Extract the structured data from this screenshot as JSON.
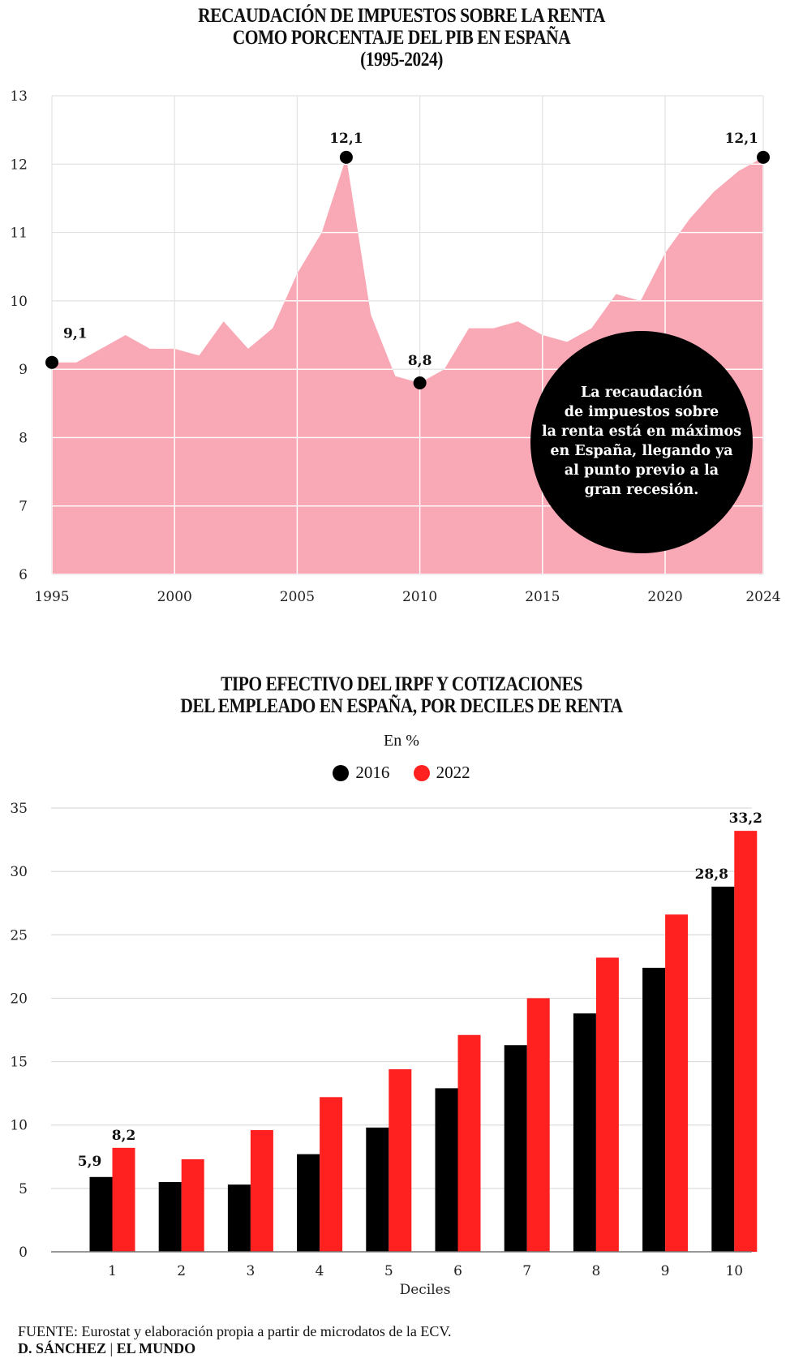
{
  "chart_data": [
    {
      "type": "area",
      "title": [
        "RECAUDACIÓN DE IMPUESTOS SOBRE LA RENTA",
        "COMO PORCENTAJE DEL PIB EN ESPAÑA",
        "(1995-2024)"
      ],
      "x": [
        1995,
        1996,
        1997,
        1998,
        1999,
        2000,
        2001,
        2002,
        2003,
        2004,
        2005,
        2006,
        2007,
        2008,
        2009,
        2010,
        2011,
        2012,
        2013,
        2014,
        2015,
        2016,
        2017,
        2018,
        2019,
        2020,
        2021,
        2022,
        2023,
        2024
      ],
      "values": [
        9.1,
        9.1,
        9.3,
        9.5,
        9.3,
        9.3,
        9.2,
        9.7,
        9.3,
        9.6,
        10.4,
        11.0,
        12.1,
        9.8,
        8.9,
        8.8,
        9.0,
        9.6,
        9.6,
        9.7,
        9.5,
        9.4,
        9.6,
        10.1,
        10.0,
        10.7,
        11.2,
        11.6,
        11.9,
        12.1
      ],
      "xlim": [
        1995,
        2024
      ],
      "ylim": [
        6,
        13
      ],
      "xticks": [
        "1995",
        "2000",
        "2005",
        "2010",
        "2015",
        "2020",
        "2024"
      ],
      "yticks": [
        "13",
        "12",
        "11",
        "10",
        "9",
        "8",
        "7",
        "6"
      ],
      "grid": true,
      "fill_color": "#f9a8b5",
      "highlights": [
        {
          "x": 1995,
          "label": "9,1"
        },
        {
          "x": 2007,
          "label": "12,1"
        },
        {
          "x": 2010,
          "label": "8,8"
        },
        {
          "x": 2024,
          "label": "12,1"
        }
      ],
      "annotation": [
        "La recaudación",
        "de impuestos sobre",
        "la renta está en máximos",
        "en España, llegando ya",
        "al punto previo a la",
        "gran recesión."
      ]
    },
    {
      "type": "bar",
      "title": [
        "TIPO EFECTIVO DEL IRPF Y COTIZACIONES",
        "DEL EMPLEADO EN ESPAÑA, POR DECILES DE RENTA"
      ],
      "subtitle": "En %",
      "xlabel": "Deciles",
      "categories": [
        "1",
        "2",
        "3",
        "4",
        "5",
        "6",
        "7",
        "8",
        "9",
        "10"
      ],
      "series": [
        {
          "name": "2016",
          "color": "#000000",
          "values": [
            5.9,
            5.5,
            5.3,
            7.7,
            9.8,
            12.9,
            16.3,
            18.8,
            22.4,
            28.8
          ]
        },
        {
          "name": "2022",
          "color": "#ff2020",
          "values": [
            8.2,
            7.3,
            9.6,
            12.2,
            14.4,
            17.1,
            20.0,
            23.2,
            26.6,
            33.2
          ]
        }
      ],
      "ylim": [
        0,
        35
      ],
      "yticks": [
        "35",
        "30",
        "25",
        "20",
        "15",
        "10",
        "5",
        "0"
      ],
      "legend": "top-center",
      "data_labels": [
        {
          "series": 0,
          "index": 0,
          "label": "5,9"
        },
        {
          "series": 1,
          "index": 0,
          "label": "8,2"
        },
        {
          "series": 0,
          "index": 9,
          "label": "28,8"
        },
        {
          "series": 1,
          "index": 9,
          "label": "33,2"
        }
      ]
    }
  ],
  "footer": {
    "source_label": "FUENTE:",
    "source_text": " Eurostat y elaboración propia a partir de microdatos de la ECV.",
    "credit_author": "D. SÁNCHEZ",
    "credit_sep": " | ",
    "credit_outlet": "EL MUNDO"
  }
}
